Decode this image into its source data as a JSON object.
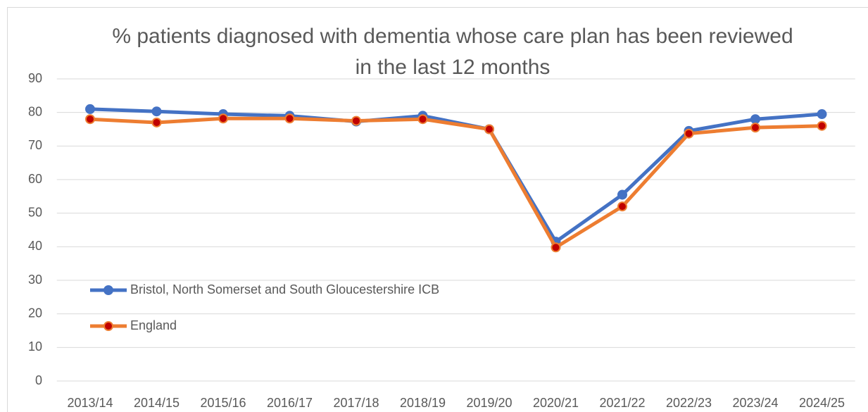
{
  "chart_data": {
    "type": "line",
    "title": "% patients diagnosed with dementia whose care plan has been reviewed in the last 12 months",
    "categories": [
      "2013/14",
      "2014/15",
      "2015/16",
      "2016/17",
      "2017/18",
      "2018/19",
      "2019/20",
      "2020/21",
      "2021/22",
      "2022/23",
      "2023/24",
      "2024/25"
    ],
    "series": [
      {
        "name": "Bristol, North Somerset and South Gloucestershire ICB",
        "color": "#4472c4",
        "marker_color": "#4472c4",
        "values": [
          81,
          80.3,
          79.5,
          79,
          77.3,
          79,
          75,
          41.5,
          55.5,
          74.5,
          78,
          79.5
        ]
      },
      {
        "name": "England",
        "color": "#ed7d31",
        "marker_color": "#c00000",
        "values": [
          78,
          77,
          78.2,
          78.2,
          77.5,
          78,
          75,
          39.8,
          52,
          73.7,
          75.5,
          76
        ]
      }
    ],
    "ylim": [
      0,
      90
    ],
    "yticks": [
      0,
      10,
      20,
      30,
      40,
      50,
      60,
      70,
      80,
      90
    ],
    "grid": true,
    "legend": "left"
  }
}
